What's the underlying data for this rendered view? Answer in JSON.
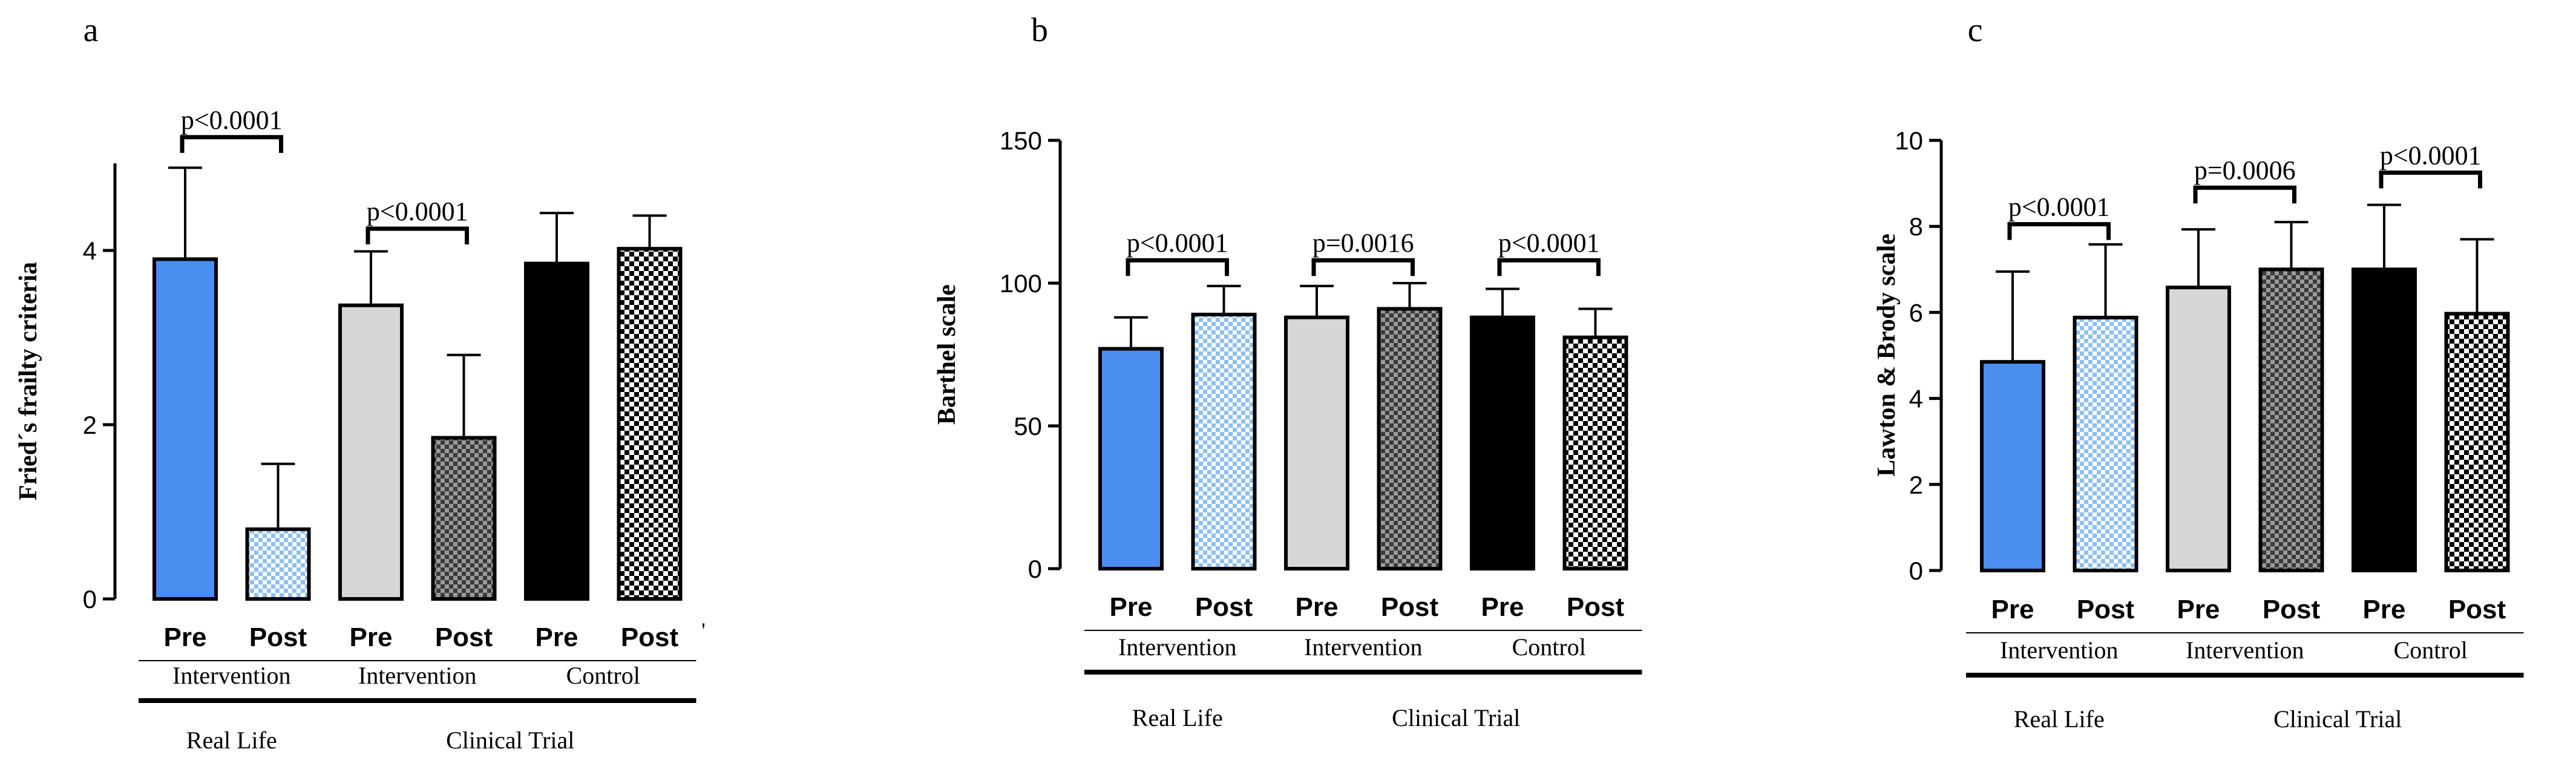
{
  "colors": {
    "blue": "#4a8ef0",
    "light_blue_check": "#8ec0f2",
    "light_gray": "#d6d6d6",
    "dark_check": "#4a4a4a",
    "black": "#000000",
    "black_white_check": "#000000"
  },
  "chart_data": [
    {
      "type": "bar",
      "panel_label": "a",
      "ylabel": "Fried´s frailty criteria",
      "ylim": [
        0,
        5
      ],
      "yticks": [
        0,
        2,
        4
      ],
      "categories": [
        "Pre",
        "Post",
        "Pre",
        "Post",
        "Pre",
        "Post"
      ],
      "values": [
        3.9,
        0.8,
        3.37,
        1.85,
        3.85,
        4.02
      ],
      "errors": [
        1.05,
        0.75,
        0.62,
        0.95,
        0.58,
        0.38
      ],
      "fills": [
        "blue",
        "light_blue_check",
        "light_gray",
        "dark_check",
        "black",
        "black_white_check"
      ],
      "group_labels": [
        {
          "label": "Intervention",
          "from": 0,
          "to": 1
        },
        {
          "label": "Intervention",
          "from": 2,
          "to": 3
        },
        {
          "label": "Control",
          "from": 4,
          "to": 5
        }
      ],
      "super_labels": [
        {
          "label": "Real Life",
          "from": 0,
          "to": 1
        },
        {
          "label": "Clinical Trial",
          "from": 2,
          "to": 5
        }
      ],
      "annotations": [
        {
          "text": "p<0.0001",
          "from": 0,
          "to": 1,
          "y": 5.3
        },
        {
          "text": "p<0.0001",
          "from": 2,
          "to": 3,
          "y": 4.25
        }
      ],
      "extra_marks": [
        "'"
      ]
    },
    {
      "type": "bar",
      "panel_label": "b",
      "ylabel": "Barthel scale",
      "ylim": [
        0,
        150
      ],
      "yticks": [
        0,
        50,
        100,
        150
      ],
      "categories": [
        "Pre",
        "Post",
        "Pre",
        "Post",
        "Pre",
        "Post"
      ],
      "values": [
        77,
        89,
        88,
        91,
        88,
        81
      ],
      "errors": [
        11,
        10,
        11,
        9,
        10,
        10
      ],
      "fills": [
        "blue",
        "light_blue_check",
        "light_gray",
        "dark_check",
        "black",
        "black_white_check"
      ],
      "group_labels": [
        {
          "label": "Intervention",
          "from": 0,
          "to": 1
        },
        {
          "label": "Intervention",
          "from": 2,
          "to": 3
        },
        {
          "label": "Control",
          "from": 4,
          "to": 5
        }
      ],
      "super_labels": [
        {
          "label": "Real Life",
          "from": 0,
          "to": 1
        },
        {
          "label": "Clinical Trial",
          "from": 2,
          "to": 5
        }
      ],
      "annotations": [
        {
          "text": "p<0.0001",
          "from": 0,
          "to": 1,
          "y": 108
        },
        {
          "text": "p=0.0016",
          "from": 2,
          "to": 3,
          "y": 108
        },
        {
          "text": "p<0.0001",
          "from": 4,
          "to": 5,
          "y": 108
        }
      ]
    },
    {
      "type": "bar",
      "panel_label": "c",
      "ylabel": "Lawton & Brody scale",
      "ylim": [
        0,
        10
      ],
      "yticks": [
        0,
        2,
        4,
        6,
        8,
        10
      ],
      "categories": [
        "Pre",
        "Post",
        "Pre",
        "Post",
        "Pre",
        "Post"
      ],
      "values": [
        4.85,
        5.88,
        6.58,
        7.0,
        7.0,
        5.97
      ],
      "errors": [
        2.1,
        1.7,
        1.35,
        1.1,
        1.5,
        1.73
      ],
      "fills": [
        "blue",
        "light_blue_check",
        "light_gray",
        "dark_check",
        "black",
        "black_white_check"
      ],
      "group_labels": [
        {
          "label": "Intervention",
          "from": 0,
          "to": 1
        },
        {
          "label": "Intervention",
          "from": 2,
          "to": 3
        },
        {
          "label": "Control",
          "from": 4,
          "to": 5
        }
      ],
      "super_labels": [
        {
          "label": "Real Life",
          "from": 0,
          "to": 1
        },
        {
          "label": "Clinical Trial",
          "from": 2,
          "to": 5
        }
      ],
      "annotations": [
        {
          "text": "p<0.0001",
          "from": 0,
          "to": 1,
          "y": 8.05
        },
        {
          "text": "p=0.0006",
          "from": 2,
          "to": 3,
          "y": 8.9
        },
        {
          "text": "p<0.0001",
          "from": 4,
          "to": 5,
          "y": 9.25
        }
      ]
    }
  ]
}
